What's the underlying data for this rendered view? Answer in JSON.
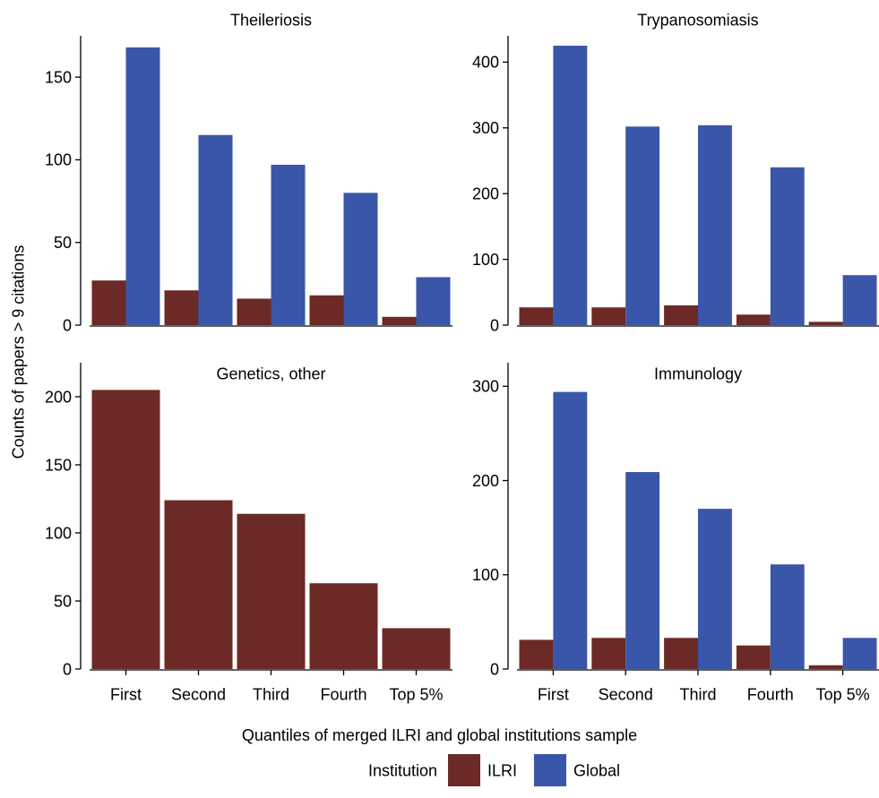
{
  "chart_data": {
    "type": "bar",
    "categories": [
      "First",
      "Second",
      "Third",
      "Fourth",
      "Top 5%"
    ],
    "xlabel": "Quantiles of merged ILRI and global institutions sample",
    "ylabel": "Counts of papers > 9 citations",
    "legend": {
      "title": "Institution",
      "placement": "bottom",
      "items": [
        {
          "name": "ILRI",
          "color": "#6b2a25"
        },
        {
          "name": "Global",
          "color": "#3a56a8"
        }
      ]
    },
    "panels": [
      {
        "title": "Theileriosis",
        "ylim": [
          0,
          175
        ],
        "yticks": [
          0,
          50,
          100,
          150
        ],
        "series": [
          {
            "name": "ILRI",
            "values": [
              27,
              21,
              16,
              18,
              5
            ]
          },
          {
            "name": "Global",
            "values": [
              168,
              115,
              97,
              80,
              29
            ]
          }
        ]
      },
      {
        "title": "Trypanosomiasis",
        "ylim": [
          0,
          440
        ],
        "yticks": [
          0,
          100,
          200,
          300,
          400
        ],
        "series": [
          {
            "name": "ILRI",
            "values": [
              27,
              27,
              30,
              16,
              5
            ]
          },
          {
            "name": "Global",
            "values": [
              425,
              302,
              304,
              240,
              76
            ]
          }
        ]
      },
      {
        "title": "Genetics, other",
        "ylim": [
          0,
          225
        ],
        "yticks": [
          0,
          50,
          100,
          150,
          200
        ],
        "series": [
          {
            "name": "ILRI",
            "values": [
              205,
              124,
              114,
              63,
              30
            ]
          }
        ]
      },
      {
        "title": "Immunology",
        "ylim": [
          0,
          325
        ],
        "yticks": [
          0,
          100,
          200,
          300
        ],
        "series": [
          {
            "name": "ILRI",
            "values": [
              31,
              33,
              33,
              25,
              4
            ]
          },
          {
            "name": "Global",
            "values": [
              294,
              209,
              170,
              111,
              33
            ]
          }
        ]
      }
    ]
  }
}
